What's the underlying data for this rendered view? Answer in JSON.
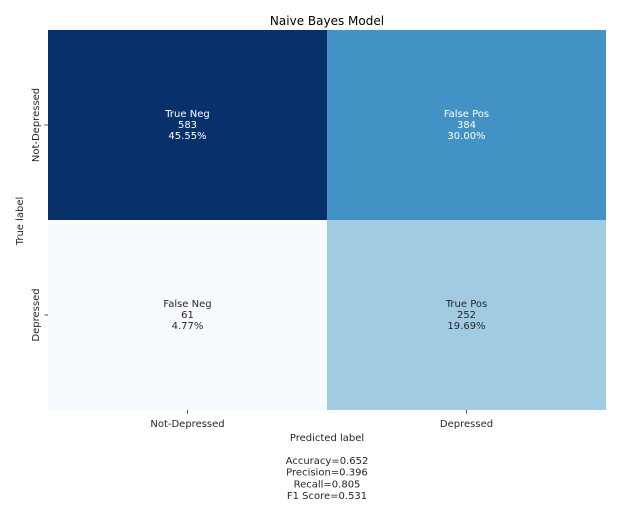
{
  "chart_data": {
    "type": "heatmap",
    "title": "Naive Bayes Model",
    "xlabel": "Predicted label",
    "ylabel": "True label",
    "x_categories": [
      "Not-Depressed",
      "Depressed"
    ],
    "y_categories": [
      "Not-Depressed",
      "Depressed"
    ],
    "colormap": "Blues",
    "colorbar": false,
    "cells": [
      [
        {
          "name": "True Neg",
          "count": 583,
          "percent": "45.55%",
          "color": "#08306b",
          "text_color": "#ffffff"
        },
        {
          "name": "False Pos",
          "count": 384,
          "percent": "30.00%",
          "color": "#4292c6",
          "text_color": "#ffffff"
        }
      ],
      [
        {
          "name": "False Neg",
          "count": 61,
          "percent": "4.77%",
          "color": "#f7fbff",
          "text_color": "#262626"
        },
        {
          "name": "True Pos",
          "count": 252,
          "percent": "19.69%",
          "color": "#a1cbe2",
          "text_color": "#262626"
        }
      ]
    ],
    "metrics": [
      "Accuracy=0.652",
      "Precision=0.396",
      "Recall=0.805",
      "F1 Score=0.531"
    ]
  }
}
